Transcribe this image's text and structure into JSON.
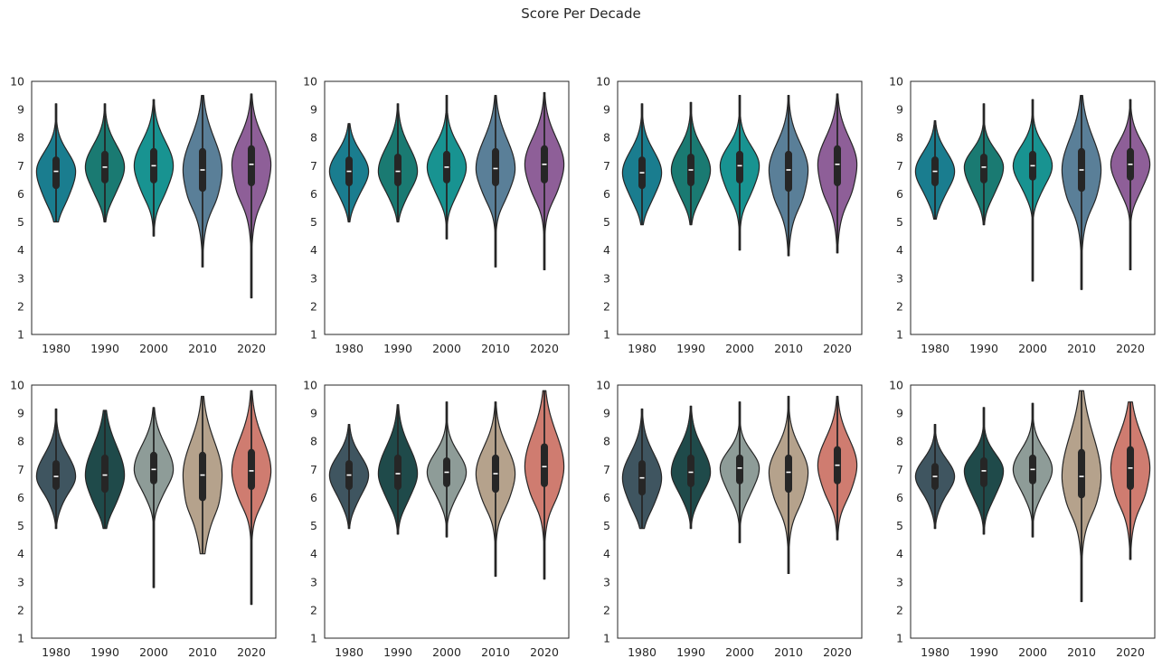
{
  "title": "Score Per Decade",
  "chart_data": [
    {
      "type": "violin",
      "categories": [
        "1980",
        "1990",
        "2000",
        "2010",
        "2020"
      ],
      "yticks": [
        1,
        2,
        3,
        4,
        5,
        6,
        7,
        8,
        9,
        10
      ],
      "ylim": [
        1,
        10
      ],
      "colors": [
        "#1a7d8f",
        "#1a7a72",
        "#189391",
        "#5a7f98",
        "#8e5f98"
      ],
      "series": [
        {
          "min": 5.0,
          "q1": 6.3,
          "median": 6.8,
          "q3": 7.2,
          "max": 9.2
        },
        {
          "min": 5.0,
          "q1": 6.5,
          "median": 6.95,
          "q3": 7.4,
          "max": 9.2
        },
        {
          "min": 4.5,
          "q1": 6.5,
          "median": 7.0,
          "q3": 7.5,
          "max": 9.35
        },
        {
          "min": 3.4,
          "q1": 6.2,
          "median": 6.85,
          "q3": 7.5,
          "max": 9.5
        },
        {
          "min": 2.3,
          "q1": 6.4,
          "median": 7.05,
          "q3": 7.6,
          "max": 9.55
        }
      ]
    },
    {
      "type": "violin",
      "categories": [
        "1980",
        "1990",
        "2000",
        "2010",
        "2020"
      ],
      "yticks": [
        1,
        2,
        3,
        4,
        5,
        6,
        7,
        8,
        9,
        10
      ],
      "ylim": [
        1,
        10
      ],
      "colors": [
        "#1a7d8f",
        "#1a7a72",
        "#189391",
        "#5a7f98",
        "#8e5f98"
      ],
      "series": [
        {
          "min": 5.0,
          "q1": 6.4,
          "median": 6.8,
          "q3": 7.2,
          "max": 8.5
        },
        {
          "min": 5.0,
          "q1": 6.4,
          "median": 6.8,
          "q3": 7.3,
          "max": 9.2
        },
        {
          "min": 4.4,
          "q1": 6.5,
          "median": 6.95,
          "q3": 7.4,
          "max": 9.5
        },
        {
          "min": 3.4,
          "q1": 6.4,
          "median": 6.9,
          "q3": 7.5,
          "max": 9.5
        },
        {
          "min": 3.3,
          "q1": 6.5,
          "median": 7.05,
          "q3": 7.6,
          "max": 9.6
        }
      ]
    },
    {
      "type": "violin",
      "categories": [
        "1980",
        "1990",
        "2000",
        "2010",
        "2020"
      ],
      "yticks": [
        1,
        2,
        3,
        4,
        5,
        6,
        7,
        8,
        9,
        10
      ],
      "ylim": [
        1,
        10
      ],
      "colors": [
        "#1a7d8f",
        "#1a7a72",
        "#189391",
        "#5a7f98",
        "#8e5f98"
      ],
      "series": [
        {
          "min": 4.9,
          "q1": 6.3,
          "median": 6.75,
          "q3": 7.2,
          "max": 9.2
        },
        {
          "min": 4.9,
          "q1": 6.4,
          "median": 6.85,
          "q3": 7.3,
          "max": 9.25
        },
        {
          "min": 4.0,
          "q1": 6.5,
          "median": 7.0,
          "q3": 7.4,
          "max": 9.5
        },
        {
          "min": 3.8,
          "q1": 6.2,
          "median": 6.85,
          "q3": 7.4,
          "max": 9.5
        },
        {
          "min": 3.9,
          "q1": 6.4,
          "median": 7.05,
          "q3": 7.6,
          "max": 9.55
        }
      ]
    },
    {
      "type": "violin",
      "categories": [
        "1980",
        "1990",
        "2000",
        "2010",
        "2020"
      ],
      "yticks": [
        1,
        2,
        3,
        4,
        5,
        6,
        7,
        8,
        9,
        10
      ],
      "ylim": [
        1,
        10
      ],
      "colors": [
        "#1a7d8f",
        "#1a7a72",
        "#189391",
        "#5a7f98",
        "#8e5f98"
      ],
      "series": [
        {
          "min": 5.1,
          "q1": 6.4,
          "median": 6.8,
          "q3": 7.2,
          "max": 8.6
        },
        {
          "min": 4.9,
          "q1": 6.5,
          "median": 6.95,
          "q3": 7.3,
          "max": 9.2
        },
        {
          "min": 2.9,
          "q1": 6.6,
          "median": 7.0,
          "q3": 7.4,
          "max": 9.35
        },
        {
          "min": 2.6,
          "q1": 6.2,
          "median": 6.85,
          "q3": 7.5,
          "max": 9.5
        },
        {
          "min": 3.3,
          "q1": 6.6,
          "median": 7.05,
          "q3": 7.5,
          "max": 9.35
        }
      ]
    },
    {
      "type": "violin",
      "categories": [
        "1980",
        "1990",
        "2000",
        "2010",
        "2020"
      ],
      "yticks": [
        1,
        2,
        3,
        4,
        5,
        6,
        7,
        8,
        9,
        10
      ],
      "ylim": [
        1,
        10
      ],
      "colors": [
        "#3f5560",
        "#1f4a4a",
        "#8e9c98",
        "#b5a28c",
        "#cf7c70"
      ],
      "series": [
        {
          "min": 4.9,
          "q1": 6.4,
          "median": 6.75,
          "q3": 7.2,
          "max": 9.15
        },
        {
          "min": 4.9,
          "q1": 6.3,
          "median": 6.8,
          "q3": 7.4,
          "max": 9.1
        },
        {
          "min": 2.8,
          "q1": 6.6,
          "median": 7.0,
          "q3": 7.5,
          "max": 9.2
        },
        {
          "min": 4.0,
          "q1": 6.0,
          "median": 6.8,
          "q3": 7.5,
          "max": 9.6
        },
        {
          "min": 2.2,
          "q1": 6.4,
          "median": 6.95,
          "q3": 7.6,
          "max": 9.8
        }
      ]
    },
    {
      "type": "violin",
      "categories": [
        "1980",
        "1990",
        "2000",
        "2010",
        "2020"
      ],
      "yticks": [
        1,
        2,
        3,
        4,
        5,
        6,
        7,
        8,
        9,
        10
      ],
      "ylim": [
        1,
        10
      ],
      "colors": [
        "#3f5560",
        "#1f4a4a",
        "#8e9c98",
        "#b5a28c",
        "#cf7c70"
      ],
      "series": [
        {
          "min": 4.9,
          "q1": 6.4,
          "median": 6.8,
          "q3": 7.2,
          "max": 8.6
        },
        {
          "min": 4.7,
          "q1": 6.4,
          "median": 6.85,
          "q3": 7.4,
          "max": 9.3
        },
        {
          "min": 4.6,
          "q1": 6.5,
          "median": 6.9,
          "q3": 7.3,
          "max": 9.4
        },
        {
          "min": 3.2,
          "q1": 6.3,
          "median": 6.85,
          "q3": 7.4,
          "max": 9.4
        },
        {
          "min": 3.1,
          "q1": 6.5,
          "median": 7.1,
          "q3": 7.8,
          "max": 9.8
        }
      ]
    },
    {
      "type": "violin",
      "categories": [
        "1980",
        "1990",
        "2000",
        "2010",
        "2020"
      ],
      "yticks": [
        1,
        2,
        3,
        4,
        5,
        6,
        7,
        8,
        9,
        10
      ],
      "ylim": [
        1,
        10
      ],
      "colors": [
        "#3f5560",
        "#1f4a4a",
        "#8e9c98",
        "#b5a28c",
        "#cf7c70"
      ],
      "series": [
        {
          "min": 4.9,
          "q1": 6.2,
          "median": 6.7,
          "q3": 7.2,
          "max": 9.15
        },
        {
          "min": 4.9,
          "q1": 6.5,
          "median": 6.9,
          "q3": 7.4,
          "max": 9.25
        },
        {
          "min": 4.4,
          "q1": 6.6,
          "median": 7.05,
          "q3": 7.4,
          "max": 9.4
        },
        {
          "min": 3.3,
          "q1": 6.3,
          "median": 6.9,
          "q3": 7.4,
          "max": 9.6
        },
        {
          "min": 4.5,
          "q1": 6.6,
          "median": 7.15,
          "q3": 7.7,
          "max": 9.6
        }
      ]
    },
    {
      "type": "violin",
      "categories": [
        "1980",
        "1990",
        "2000",
        "2010",
        "2020"
      ],
      "yticks": [
        1,
        2,
        3,
        4,
        5,
        6,
        7,
        8,
        9,
        10
      ],
      "ylim": [
        1,
        10
      ],
      "colors": [
        "#3f5560",
        "#1f4a4a",
        "#8e9c98",
        "#b5a28c",
        "#cf7c70"
      ],
      "series": [
        {
          "min": 4.9,
          "q1": 6.4,
          "median": 6.75,
          "q3": 7.1,
          "max": 8.6
        },
        {
          "min": 4.7,
          "q1": 6.5,
          "median": 6.95,
          "q3": 7.3,
          "max": 9.2
        },
        {
          "min": 4.6,
          "q1": 6.6,
          "median": 7.0,
          "q3": 7.4,
          "max": 9.35
        },
        {
          "min": 2.3,
          "q1": 6.1,
          "median": 6.75,
          "q3": 7.6,
          "max": 9.8
        },
        {
          "min": 3.8,
          "q1": 6.4,
          "median": 7.05,
          "q3": 7.7,
          "max": 9.4
        }
      ]
    }
  ]
}
